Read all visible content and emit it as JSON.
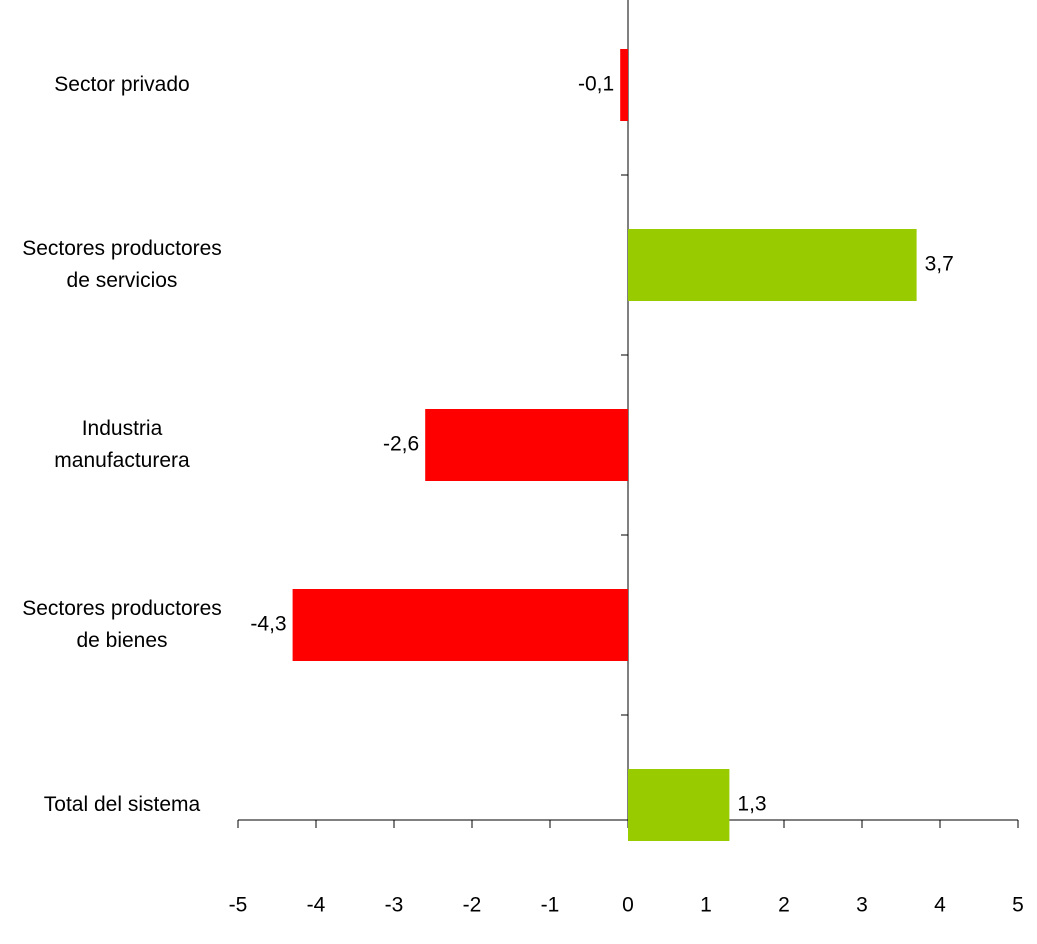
{
  "chart_data": {
    "type": "hbar",
    "categories": [
      "Sector privado",
      "Sectores productores de servicios",
      "Industria manufacturera",
      "Sectores productores de bienes",
      "Total del sistema"
    ],
    "values": [
      -0.1,
      3.7,
      -2.6,
      -4.3,
      1.3
    ],
    "value_labels": [
      "-0,1",
      "3,7",
      "-2,6",
      "-4,3",
      "1,3"
    ],
    "colors": [
      "#ff0000",
      "#99cc00",
      "#ff0000",
      "#ff0000",
      "#99cc00"
    ],
    "xlim": [
      -5,
      5
    ],
    "xticks": [
      -5,
      -4,
      -3,
      -2,
      -1,
      0,
      1,
      2,
      3,
      4,
      5
    ]
  }
}
